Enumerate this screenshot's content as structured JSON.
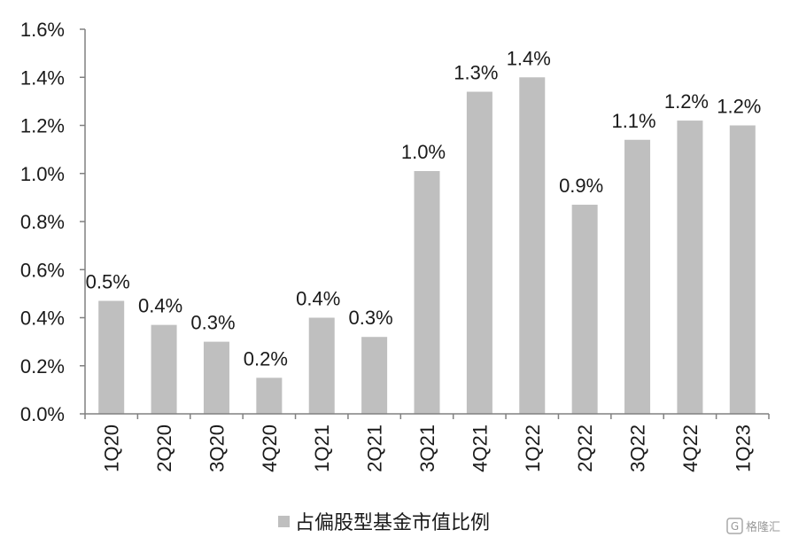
{
  "chart_data": {
    "type": "bar",
    "categories": [
      "1Q20",
      "2Q20",
      "3Q20",
      "4Q20",
      "1Q21",
      "2Q21",
      "3Q21",
      "4Q21",
      "1Q22",
      "2Q22",
      "3Q22",
      "4Q22",
      "1Q23"
    ],
    "series": [
      {
        "name": "占偏股型基金市值比例",
        "values": [
          0.0047,
          0.0037,
          0.003,
          0.0015,
          0.004,
          0.0032,
          0.0101,
          0.0134,
          0.014,
          0.0087,
          0.0114,
          0.0122,
          0.012
        ],
        "labels": [
          "0.5%",
          "0.4%",
          "0.3%",
          "0.2%",
          "0.4%",
          "0.3%",
          "1.0%",
          "1.3%",
          "1.4%",
          "0.9%",
          "1.1%",
          "1.2%",
          "1.2%"
        ]
      }
    ],
    "ylim": [
      0,
      0.016
    ],
    "yticks": [
      "0.0%",
      "0.2%",
      "0.4%",
      "0.6%",
      "0.8%",
      "1.0%",
      "1.2%",
      "1.4%",
      "1.6%"
    ],
    "legend_position": "bottom",
    "grid": false,
    "bar_color": "#bfbfbf",
    "axis_color": "#808080"
  },
  "watermark": {
    "text": "格隆汇"
  }
}
